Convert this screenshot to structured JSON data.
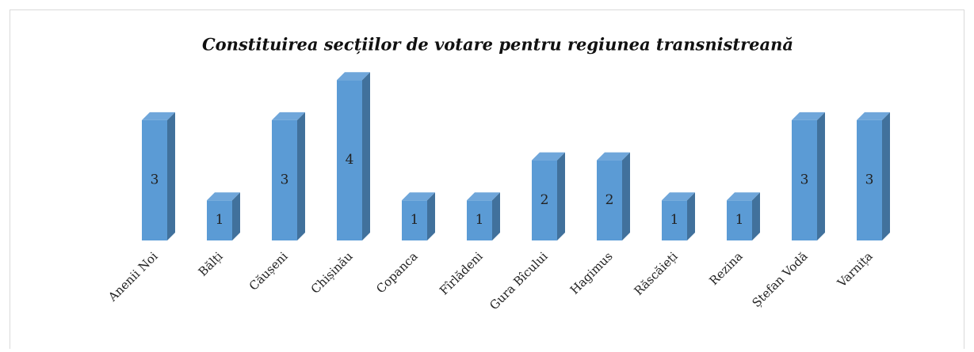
{
  "chart_data": {
    "type": "bar3d",
    "title": "Constituirea secțiilor de votare pentru regiunea transnistreană",
    "categories": [
      "Anenii Noi",
      "Bălți",
      "Căușeni",
      "Chișinău",
      "Copanca",
      "Fîrlădeni",
      "Gura Bîcului",
      "Hagimus",
      "Răscăieți",
      "Rezina",
      "Ștefan Vodă",
      "Varnița"
    ],
    "values": [
      3,
      1,
      3,
      4,
      1,
      1,
      2,
      2,
      1,
      1,
      3,
      3
    ],
    "color": "#5b9bd5"
  }
}
